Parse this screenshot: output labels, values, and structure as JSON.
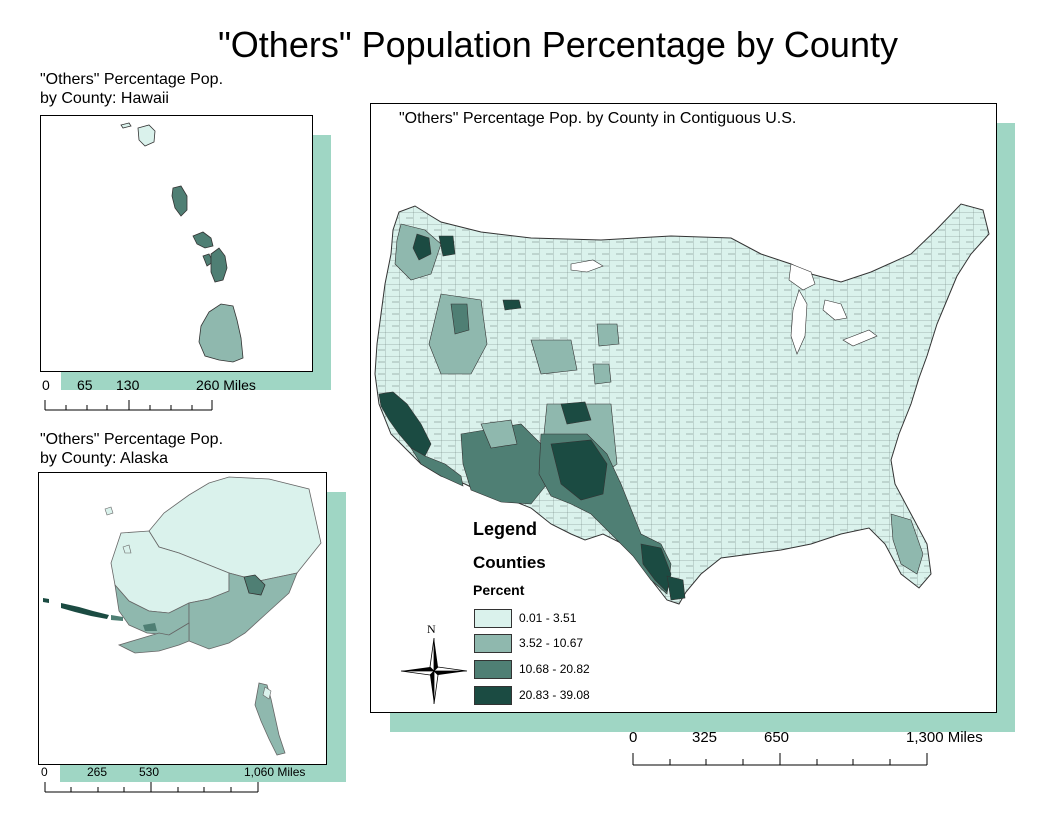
{
  "title": "\"Others\" Population Percentage by County",
  "hawaii": {
    "title_line1": "\"Others\" Percentage Pop.",
    "title_line2": "by County: Hawaii",
    "scale": {
      "t0": "0",
      "t1": "65",
      "t2": "130",
      "t3": "260 Miles"
    }
  },
  "alaska": {
    "title_line1": "\"Others\" Percentage Pop.",
    "title_line2": "by County: Alaska",
    "scale": {
      "t0": "0",
      "t1": "265",
      "t2": "530",
      "t3": "1,060 Miles"
    }
  },
  "contiguous": {
    "title": "\"Others\" Percentage Pop. by County in Contiguous U.S.",
    "scale": {
      "t0": "0",
      "t1": "325",
      "t2": "650",
      "t3": "1,300 Miles"
    }
  },
  "legend": {
    "title": "Legend",
    "layer": "Counties",
    "field": "Percent",
    "classes": [
      {
        "label": "0.01 - 3.51",
        "color": "#daf2ec"
      },
      {
        "label": "3.52 - 10.67",
        "color": "#8fb8ae"
      },
      {
        "label": "10.68 - 20.82",
        "color": "#4f7f74"
      },
      {
        "label": "20.83 - 39.08",
        "color": "#1b4b42"
      }
    ]
  },
  "north_arrow": {
    "label": "N"
  },
  "colors": {
    "shadow": "#9fd6c4",
    "class1": "#daf2ec",
    "class2": "#8fb8ae",
    "class3": "#4f7f74",
    "class4": "#1b4b42"
  }
}
